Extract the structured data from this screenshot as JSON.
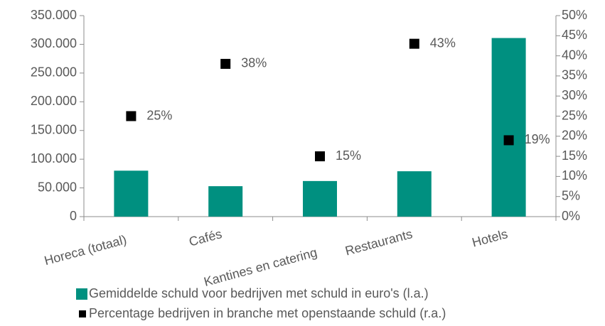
{
  "chart_data": {
    "type": "bar",
    "categories": [
      "Horeca (totaal)",
      "Cafés",
      "Kantines en catering",
      "Restaurants",
      "Hotels"
    ],
    "series": [
      {
        "name": "Gemiddelde schuld voor bedrijven met schuld in euro's (l.a.)",
        "color": "#009080",
        "type": "bar",
        "values": [
          80000,
          53000,
          62000,
          79000,
          311000
        ]
      },
      {
        "name": "Percentage bedrijven in branche met openstaande schuld (r.a.)",
        "color": "#000000",
        "type": "scatter",
        "axis": "y2",
        "values": [
          25,
          38,
          15,
          43,
          19
        ],
        "value_labels": [
          "25%",
          "38%",
          "15%",
          "43%",
          "19%"
        ]
      }
    ],
    "ylim": [
      0,
      350000
    ],
    "yticks": [
      0,
      {
        "value": 50000,
        "label": "50.000"
      },
      {
        "value": 100000,
        "label": "100.000"
      },
      {
        "value": 150000,
        "label": "150.000"
      },
      {
        "value": 200000,
        "label": "200.000"
      },
      {
        "value": 250000,
        "label": "250.000"
      },
      {
        "value": 300000,
        "label": "300.000"
      },
      {
        "value": 350000,
        "label": "350.000"
      }
    ],
    "y2lim": [
      0,
      50
    ],
    "y2ticks": [
      {
        "value": 0,
        "label": "0%"
      },
      {
        "value": 5,
        "label": "5%"
      },
      {
        "value": 10,
        "label": "10%"
      },
      {
        "value": 15,
        "label": "15%"
      },
      {
        "value": 20,
        "label": "20%"
      },
      {
        "value": 25,
        "label": "25%"
      },
      {
        "value": 30,
        "label": "30%"
      },
      {
        "value": 35,
        "label": "35%"
      },
      {
        "value": 40,
        "label": "40%"
      },
      {
        "value": 45,
        "label": "45%"
      },
      {
        "value": 50,
        "label": "50%"
      }
    ],
    "grid": false
  }
}
